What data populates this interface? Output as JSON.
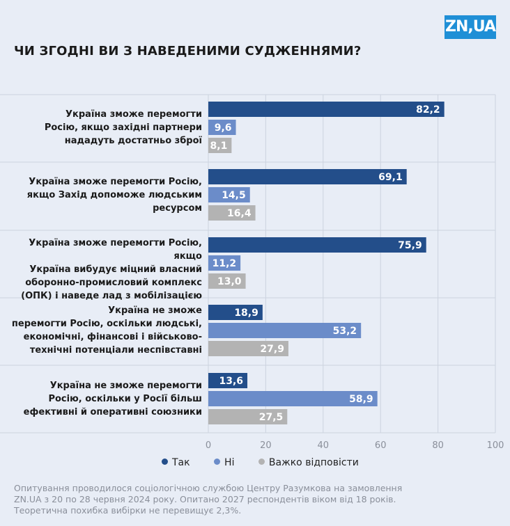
{
  "logo": "ZN,UA",
  "title": "ЧИ ЗГОДНІ ВИ З НАВЕДЕНИМИ СУДЖЕННЯМИ?",
  "colors": {
    "tak": "#234e8a",
    "ni": "#6b8cc9",
    "vazhko": "#b3b3b3"
  },
  "chart_data": {
    "type": "bar",
    "orientation": "horizontal",
    "categories": [
      [
        "Україна зможе перемогти",
        "Росію, якщо західні партнери",
        "нададуть достатньо зброї"
      ],
      [
        "Україна зможе перемогти Росію,",
        "якщо Захід допоможе людським",
        "ресурсом"
      ],
      [
        "Україна зможе перемогти Росію, якщо",
        "Україна вибудує міцний власний",
        "оборонно-промисловий комплекс",
        "(ОПК) і наведе лад з мобілізацією"
      ],
      [
        "Україна не зможе",
        "перемогти Росію, оскільки людські,",
        "економічні, фінансові і військово-",
        "технічні потенціали неспівставні"
      ],
      [
        "Україна не зможе перемогти",
        "Росію, оскільки у Росії більш",
        "ефективні й оперативні союзники"
      ]
    ],
    "series": [
      {
        "name": "Так",
        "values": [
          82.2,
          69.1,
          75.9,
          18.9,
          13.6
        ],
        "labels": [
          "82,2",
          "69,1",
          "75,9",
          "18,9",
          "13,6"
        ]
      },
      {
        "name": "Ні",
        "values": [
          9.6,
          14.5,
          11.2,
          53.2,
          58.9
        ],
        "labels": [
          "9,6",
          "14,5",
          "11,2",
          "53,2",
          "58,9"
        ]
      },
      {
        "name": "Важко відповісти",
        "values": [
          8.1,
          16.4,
          13.0,
          27.9,
          27.5
        ],
        "labels": [
          "8,1",
          "16,4",
          "13,0",
          "27,9",
          "27,5"
        ]
      }
    ],
    "xlim": [
      0,
      100
    ],
    "xticks": [
      "0",
      "20",
      "40",
      "60",
      "80",
      "100"
    ],
    "grid": true,
    "legend": "bottom"
  },
  "footnote": "Опитування проводилося соціологічною службою Центру Разумкова на замовлення ZN.UA з 20 по 28 червня 2024 року. Опитано 2027 респондентів віком від 18 років. Теоретична похибка вибірки не перевищує 2,3%."
}
